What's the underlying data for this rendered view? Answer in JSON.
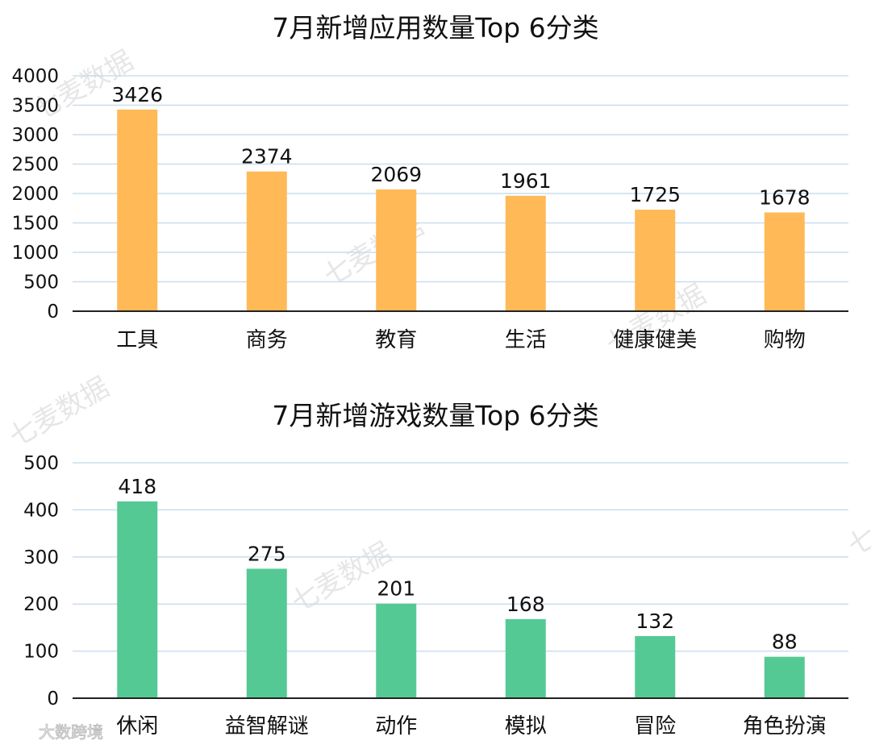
{
  "chart_data": [
    {
      "type": "bar",
      "title": "7月新增应用数量Top 6分类",
      "categories": [
        "工具",
        "商务",
        "教育",
        "生活",
        "健康健美",
        "购物"
      ],
      "values": [
        3426,
        2374,
        2069,
        1961,
        1725,
        1678
      ],
      "yticks": [
        0,
        500,
        1000,
        1500,
        2000,
        2500,
        3000,
        3500,
        4000
      ],
      "ylim": [
        0,
        4000
      ],
      "grid": true,
      "legend": "none",
      "color": "#FFB957"
    },
    {
      "type": "bar",
      "title": "7月新增游戏数量Top 6分类",
      "categories": [
        "休闲",
        "益智解谜",
        "动作",
        "模拟",
        "冒险",
        "角色扮演"
      ],
      "values": [
        418,
        275,
        201,
        168,
        132,
        88
      ],
      "yticks": [
        0,
        100,
        200,
        300,
        400,
        500
      ],
      "ylim": [
        0,
        500
      ],
      "grid": true,
      "legend": "none",
      "color": "#55C994"
    }
  ],
  "watermark": "七麦数据",
  "brand": "大数跨境",
  "colors": {
    "grid": "#C9DDEE",
    "axis": "#222222"
  }
}
